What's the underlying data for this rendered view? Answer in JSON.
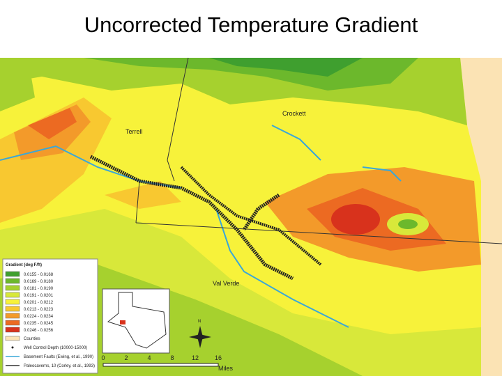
{
  "header": {
    "title": "Uncorrected Temperature Gradient"
  },
  "map": {
    "labels": [
      "Terrell",
      "Crockett",
      "Val Verde"
    ],
    "legend": {
      "title": "Gradient (deg F/ft)",
      "items": [
        {
          "label": "0.0155 - 0.0168",
          "color": "#3f9f2f"
        },
        {
          "label": "0.0169 - 0.0180",
          "color": "#6cb82c"
        },
        {
          "label": "0.0181 - 0.0190",
          "color": "#a6d12e"
        },
        {
          "label": "0.0191 - 0.0201",
          "color": "#d8e83a"
        },
        {
          "label": "0.0201 - 0.0212",
          "color": "#f7f23a"
        },
        {
          "label": "0.0213 - 0.0223",
          "color": "#f8c830"
        },
        {
          "label": "0.0224 - 0.0234",
          "color": "#f39a2a"
        },
        {
          "label": "0.0235 - 0.0245",
          "color": "#ec6a22"
        },
        {
          "label": "0.0246 - 0.0256",
          "color": "#d8321c"
        }
      ],
      "symbols": [
        "Counties",
        "Well Control Depth (10000-15000)",
        "Basement Faults (Ewing, et al., 1990)",
        "Paleocaverns, 10 (Corley, et al., 1993)"
      ]
    },
    "north": "N",
    "scale": {
      "ticks": [
        "0",
        "2",
        "4",
        "8",
        "12",
        "16"
      ],
      "unit": "Miles"
    }
  }
}
